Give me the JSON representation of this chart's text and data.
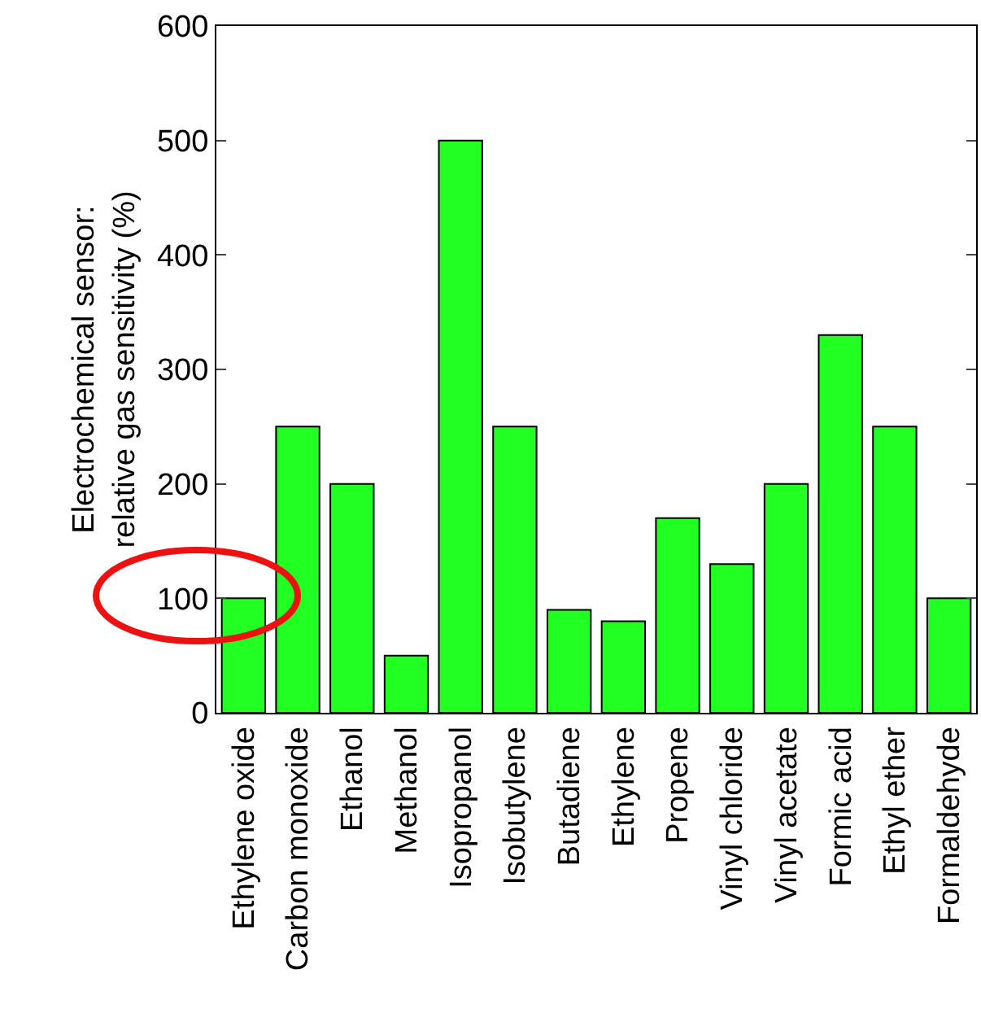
{
  "chart_data": {
    "type": "bar",
    "ylabel": "Electrochemical sensor:\nrelative gas sensitivity (%)",
    "categories": [
      "Ethylene oxide",
      "Carbon monoxide",
      "Ethanol",
      "Methanol",
      "Isopropanol",
      "Isobutylene",
      "Butadiene",
      "Ethylene",
      "Propene",
      "Vinyl chloride",
      "Vinyl acetate",
      "Formic acid",
      "Ethyl ether",
      "Formaldehyde"
    ],
    "values": [
      100,
      250,
      200,
      50,
      500,
      250,
      90,
      80,
      170,
      130,
      200,
      330,
      250,
      100
    ],
    "color": "#22ff22",
    "ylim": [
      0,
      600
    ],
    "yticks": [
      0,
      100,
      200,
      300,
      400,
      500,
      600
    ],
    "grid": false
  }
}
